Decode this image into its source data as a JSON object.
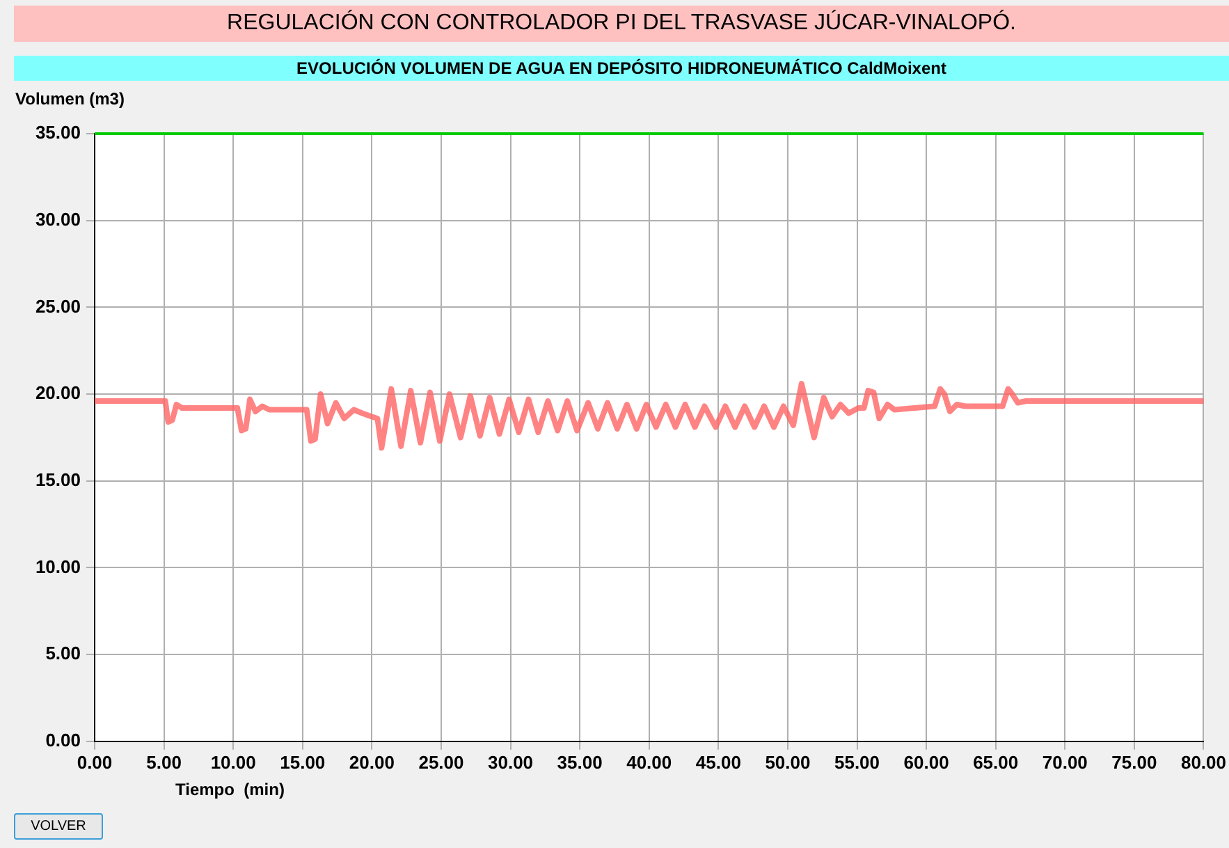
{
  "chart_data": {
    "type": "line",
    "title": "REGULACIÓN CON CONTROLADOR PI DEL TRASVASE JÚCAR-VINALOPÓ.",
    "subtitle": "EVOLUCIÓN VOLUMEN DE AGUA EN DEPÓSITO HIDRONEUMÁTICO CaldMoixent",
    "ylabel": "Volumen (m3)",
    "xlabel": "Tiempo  (min)",
    "annotations": [
      "VOLVER"
    ],
    "xlim": [
      0,
      80
    ],
    "xticks": [
      {
        "value": 0,
        "label": "0.00"
      },
      {
        "value": 5,
        "label": "5.00"
      },
      {
        "value": 10,
        "label": "10.00"
      },
      {
        "value": 15,
        "label": "15.00"
      },
      {
        "value": 20,
        "label": "20.00"
      },
      {
        "value": 25,
        "label": "25.00"
      },
      {
        "value": 30,
        "label": "30.00"
      },
      {
        "value": 35,
        "label": "35.00"
      },
      {
        "value": 40,
        "label": "40.00"
      },
      {
        "value": 45,
        "label": "45.00"
      },
      {
        "value": 50,
        "label": "50.00"
      },
      {
        "value": 55,
        "label": "55.00"
      },
      {
        "value": 60,
        "label": "60.00"
      },
      {
        "value": 65,
        "label": "65.00"
      },
      {
        "value": 70,
        "label": "70.00"
      },
      {
        "value": 75,
        "label": "75.00"
      },
      {
        "value": 80,
        "label": "80.00"
      }
    ],
    "ylim": [
      0,
      35
    ],
    "yticks": [
      {
        "value": 0,
        "label": "0.00"
      },
      {
        "value": 5,
        "label": "5.00"
      },
      {
        "value": 10,
        "label": "10.00"
      },
      {
        "value": 15,
        "label": "15.00"
      },
      {
        "value": 20,
        "label": "20.00"
      },
      {
        "value": 25,
        "label": "25.00"
      },
      {
        "value": 30,
        "label": "30.00"
      },
      {
        "value": 35,
        "label": "35.00"
      }
    ],
    "grid": true,
    "legend": false,
    "marker": "none",
    "line_style": "solid",
    "ref_lines": [
      {
        "axis": "y",
        "value": 35,
        "color": "#00cc00"
      }
    ],
    "series": [
      {
        "color": "#ff6464",
        "x": [
          0,
          5.1,
          5.3,
          5.6,
          5.9,
          6.3,
          10.3,
          10.6,
          10.9,
          11.2,
          11.6,
          12.1,
          12.6,
          15.3,
          15.6,
          15.9,
          16.3,
          16.8,
          17.4,
          18.0,
          18.7,
          19.3,
          20.0,
          20.4,
          20.7,
          21.4,
          22.1,
          22.8,
          23.5,
          24.2,
          24.9,
          25.6,
          26.4,
          27.1,
          27.8,
          28.5,
          29.2,
          29.9,
          30.6,
          31.3,
          32.0,
          32.7,
          33.4,
          34.1,
          34.8,
          35.6,
          36.3,
          37.0,
          37.7,
          38.4,
          39.1,
          39.8,
          40.5,
          41.2,
          41.9,
          42.6,
          43.3,
          44.0,
          44.8,
          45.5,
          46.2,
          46.9,
          47.6,
          48.3,
          49.0,
          49.7,
          50.4,
          51.0,
          51.9,
          52.6,
          53.2,
          53.8,
          54.4,
          55.1,
          55.5,
          55.8,
          56.2,
          56.6,
          57.2,
          57.7,
          60.6,
          61.0,
          61.3,
          61.7,
          62.2,
          62.8,
          65.5,
          65.9,
          66.2,
          66.6,
          67.2,
          80
        ],
        "values": [
          19.6,
          19.6,
          18.4,
          18.5,
          19.4,
          19.2,
          19.2,
          17.9,
          18.0,
          19.7,
          19.0,
          19.3,
          19.1,
          19.1,
          17.3,
          17.4,
          20.0,
          18.3,
          19.5,
          18.6,
          19.1,
          18.9,
          18.7,
          18.6,
          16.9,
          20.3,
          17.0,
          20.2,
          17.2,
          20.1,
          17.3,
          20.0,
          17.5,
          19.9,
          17.6,
          19.8,
          17.7,
          19.7,
          17.8,
          19.7,
          17.8,
          19.6,
          17.9,
          19.6,
          17.9,
          19.5,
          18.0,
          19.5,
          18.0,
          19.4,
          18.0,
          19.4,
          18.1,
          19.4,
          18.1,
          19.4,
          18.1,
          19.3,
          18.1,
          19.3,
          18.1,
          19.3,
          18.1,
          19.3,
          18.1,
          19.3,
          18.2,
          20.6,
          17.5,
          19.8,
          18.7,
          19.4,
          18.9,
          19.2,
          19.2,
          20.2,
          20.1,
          18.6,
          19.4,
          19.1,
          19.3,
          20.3,
          20.0,
          19.0,
          19.4,
          19.3,
          19.3,
          20.3,
          20.0,
          19.5,
          19.6,
          19.6
        ]
      }
    ]
  }
}
